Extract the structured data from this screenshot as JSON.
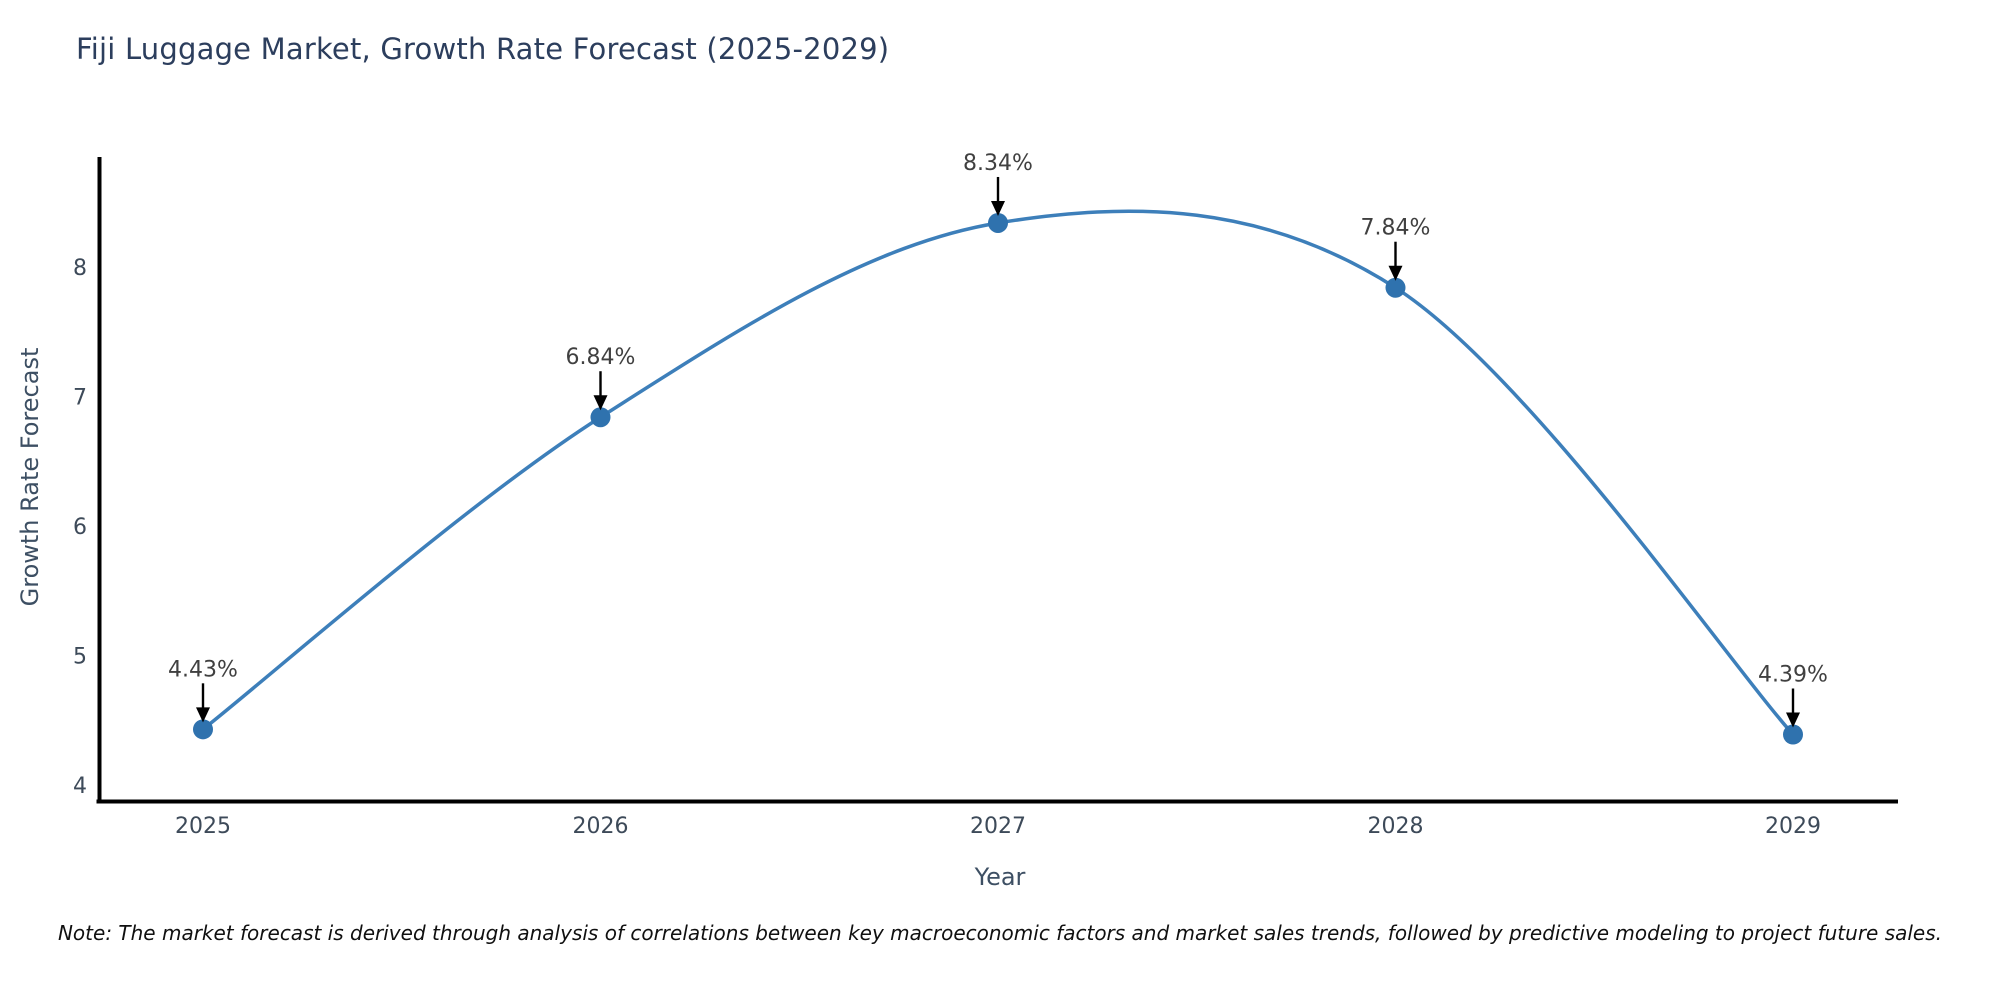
{
  "page": {
    "note": "Note: The market forecast is derived through analysis of correlations between key macroeconomic factors and market sales trends, followed by predictive modeling to project future sales."
  },
  "chart_data": {
    "type": "line",
    "title": "Fiji Luggage Market, Growth Rate Forecast (2025-2029)",
    "xlabel": "Year",
    "ylabel": "Growth Rate Forecast",
    "categories": [
      2025,
      2026,
      2027,
      2028,
      2029
    ],
    "values": [
      4.43,
      6.84,
      8.34,
      7.84,
      4.39
    ],
    "point_labels": [
      "4.43%",
      "6.84%",
      "8.34%",
      "7.84%",
      "4.39%"
    ],
    "yticks": [
      4,
      5,
      6,
      7,
      8
    ],
    "ylim": [
      3.87,
      8.85
    ],
    "grid": false,
    "legend": null,
    "colors": {
      "line": "#3d7fba",
      "marker": "#2f72ae",
      "axis": "#000000",
      "tick_label": "#3d4a59",
      "axis_label": "#3d4f63",
      "title": "#2c3e5d",
      "annotation_text": "#404040",
      "annotation_arrow": "#000000"
    }
  }
}
